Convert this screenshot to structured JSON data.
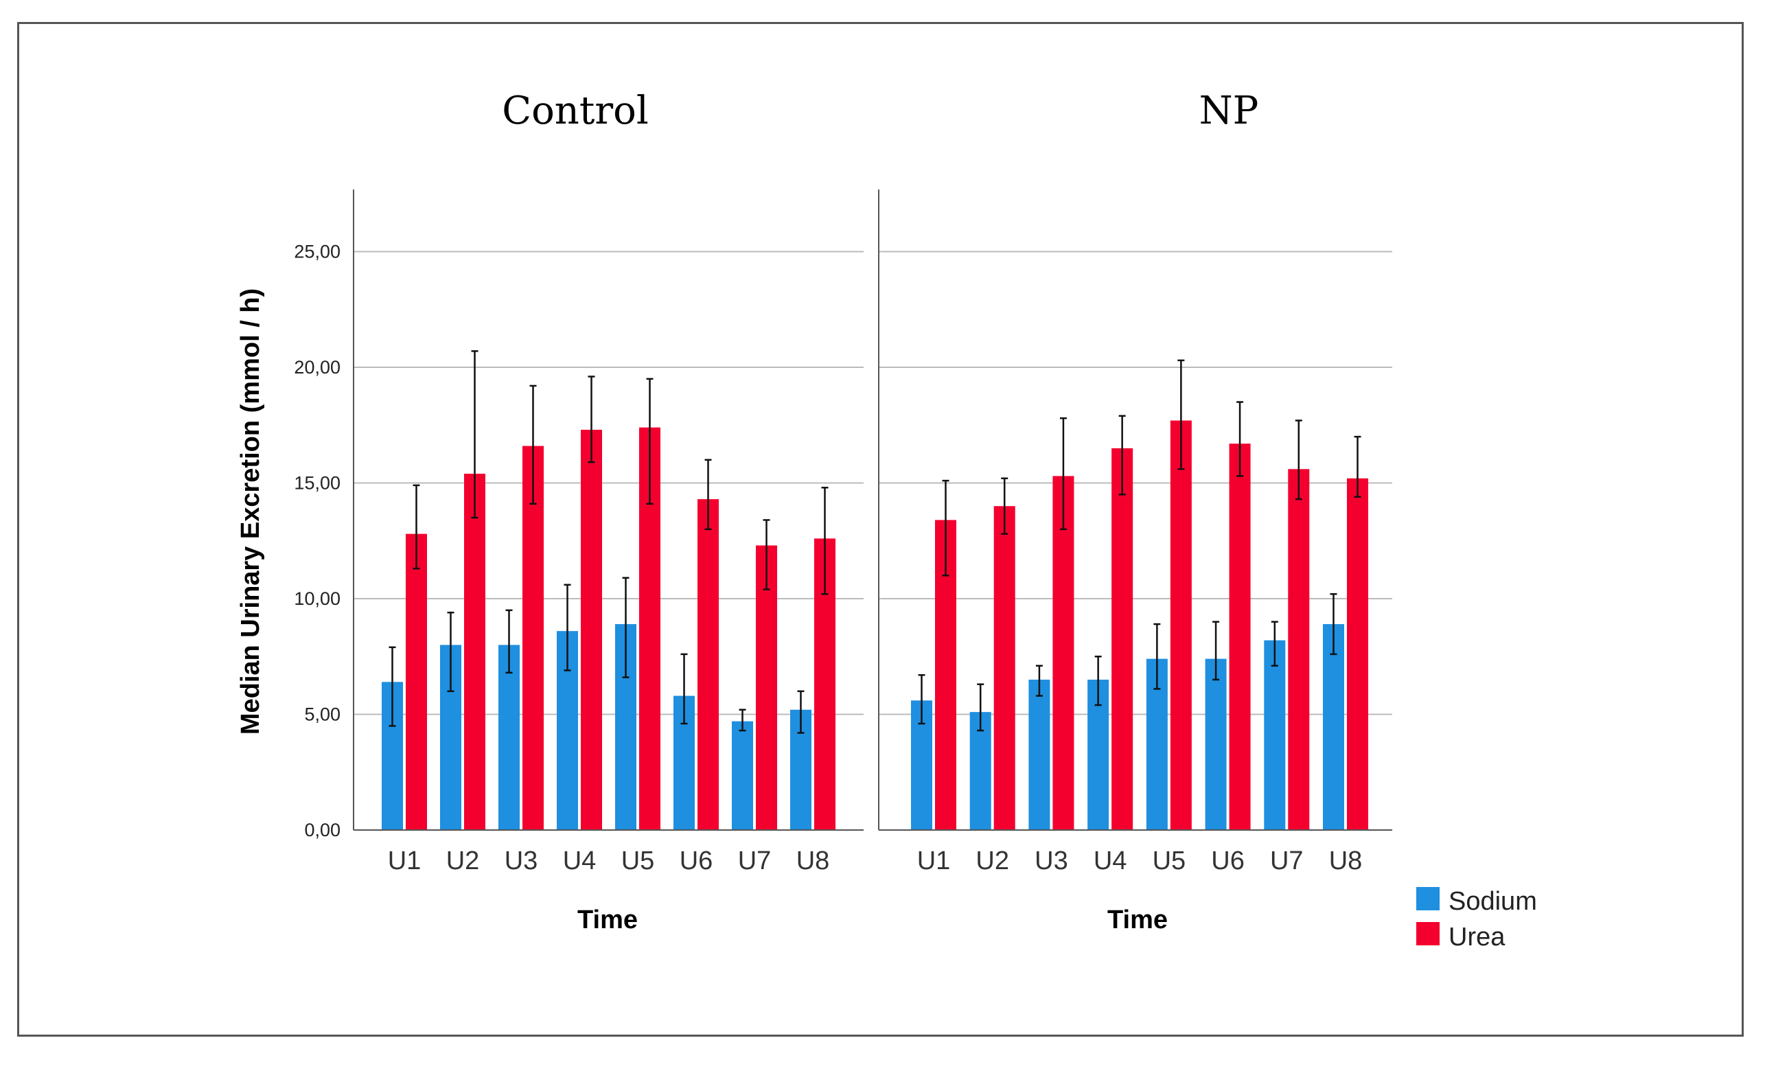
{
  "chart_data": {
    "type": "bar",
    "ylabel": "Median Urinary Excretion (mmol / h)",
    "xlabel": "Time",
    "ylim": [
      0,
      27.5
    ],
    "yticks": [
      0,
      5,
      10,
      15,
      20,
      25
    ],
    "ytick_labels": [
      "0,00",
      "5,00",
      "10,00",
      "15,00",
      "20,00",
      "25,00"
    ],
    "grid": true,
    "legend_position": "bottom-right",
    "colors": {
      "Sodium": "#1f8fe0",
      "Urea": "#f4002f",
      "errorbar": "#111111",
      "grid": "#bbbbbb",
      "axis": "#555555"
    },
    "legend": [
      "Sodium",
      "Urea"
    ],
    "categories": [
      "U1",
      "U2",
      "U3",
      "U4",
      "U5",
      "U6",
      "U7",
      "U8"
    ],
    "panels": [
      {
        "title": "Control",
        "series": [
          {
            "name": "Sodium",
            "values": [
              6.4,
              8.0,
              8.0,
              8.6,
              8.9,
              5.8,
              4.7,
              5.2
            ],
            "err_low": [
              4.5,
              6.0,
              6.8,
              6.9,
              6.6,
              4.6,
              4.3,
              4.2
            ],
            "err_high": [
              7.9,
              9.4,
              9.5,
              10.6,
              10.9,
              7.6,
              5.2,
              6.0
            ]
          },
          {
            "name": "Urea",
            "values": [
              12.8,
              15.4,
              16.6,
              17.3,
              17.4,
              14.3,
              12.3,
              12.6
            ],
            "err_low": [
              11.3,
              13.5,
              14.1,
              15.9,
              14.1,
              13.0,
              10.4,
              10.2
            ],
            "err_high": [
              14.9,
              20.7,
              19.2,
              19.6,
              19.5,
              16.0,
              13.4,
              14.8
            ]
          }
        ]
      },
      {
        "title": "NP",
        "series": [
          {
            "name": "Sodium",
            "values": [
              5.6,
              5.1,
              6.5,
              6.5,
              7.4,
              7.4,
              8.2,
              8.9
            ],
            "err_low": [
              4.6,
              4.3,
              5.8,
              5.4,
              6.1,
              6.5,
              7.1,
              7.6
            ],
            "err_high": [
              6.7,
              6.3,
              7.1,
              7.5,
              8.9,
              9.0,
              9.0,
              10.2
            ]
          },
          {
            "name": "Urea",
            "values": [
              13.4,
              14.0,
              15.3,
              16.5,
              17.7,
              16.7,
              15.6,
              15.2
            ],
            "err_low": [
              11.0,
              12.8,
              13.0,
              14.5,
              15.6,
              15.3,
              14.3,
              14.4
            ],
            "err_high": [
              15.1,
              15.2,
              17.8,
              17.9,
              20.3,
              18.5,
              17.7,
              17.0
            ]
          }
        ]
      }
    ]
  }
}
